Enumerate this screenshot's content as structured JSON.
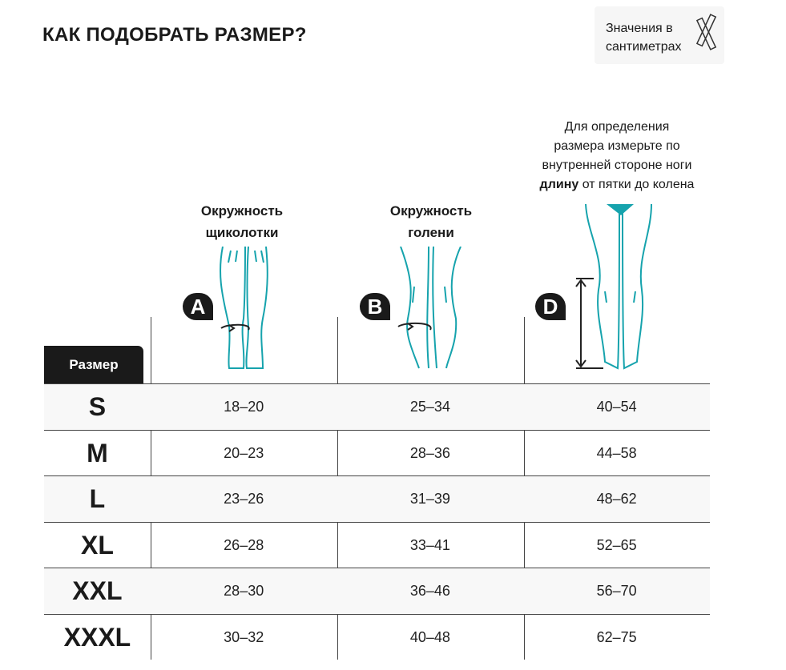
{
  "title": "КАК ПОДОБРАТЬ РАЗМЕР?",
  "units_note": {
    "line1": "Значения в",
    "line2": "сантиметрах",
    "icon": "ruler-icon"
  },
  "columns": [
    {
      "badge": "A",
      "label_line1": "Окружность",
      "label_line2": "щиколотки"
    },
    {
      "badge": "B",
      "label_line1": "Окружность",
      "label_line2": "голени"
    },
    {
      "badge": "D",
      "note_line1": "Для определения",
      "note_line2": "размера измерьте по",
      "note_line3": "внутренней стороне ноги",
      "note_bold": "длину",
      "note_rest": " от пятки до колена"
    }
  ],
  "size_header": "Размер",
  "rows": [
    {
      "size": "S",
      "a": "18–20",
      "b": "25–34",
      "d": "40–54"
    },
    {
      "size": "M",
      "a": "20–23",
      "b": "28–36",
      "d": "44–58"
    },
    {
      "size": "L",
      "a": "23–26",
      "b": "31–39",
      "d": "48–62"
    },
    {
      "size": "XL",
      "a": "26–28",
      "b": "33–41",
      "d": "52–65"
    },
    {
      "size": "XXL",
      "a": "28–30",
      "b": "36–46",
      "d": "56–70"
    },
    {
      "size": "XXXL",
      "a": "30–32",
      "b": "40–48",
      "d": "62–75"
    }
  ],
  "colors": {
    "accent": "#16a3ad",
    "dark": "#1a1a1a",
    "row_alt": "#f8f8f8"
  }
}
